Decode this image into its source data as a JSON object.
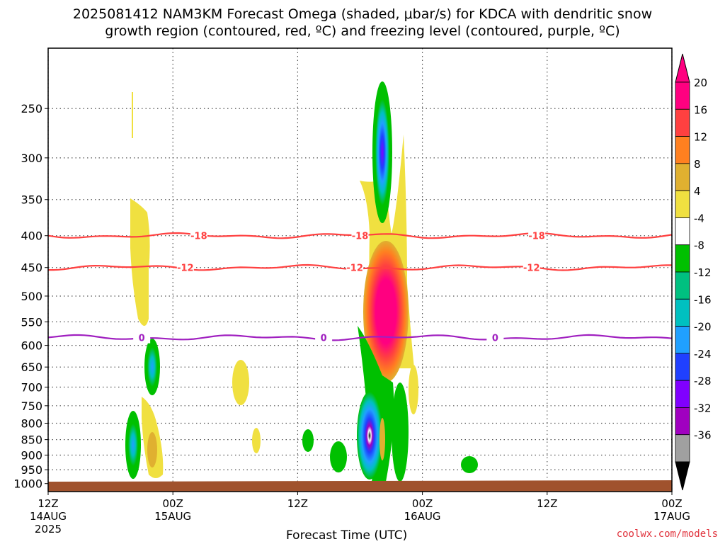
{
  "title_line1": "2025081412 NAM3KM Forecast Omega (shaded, μbar/s) for KDCA with dendritic snow",
  "title_line2": "growth region (contoured, red, ºC) and freezing level (contoured, purple, ºC)",
  "credit": "coolwx.com/models",
  "chart_data": {
    "type": "contour",
    "title": "2025081412 NAM3KM Forecast Omega (shaded, μbar/s) for KDCA with dendritic snow growth region (contoured, red, ºC) and freezing level (contoured, purple, ºC)",
    "xlabel": "Forecast Time (UTC)",
    "ylabel": "",
    "x_range_hours": [
      0,
      60
    ],
    "y_range_hpa": [
      1030,
      200
    ],
    "y_scale": "log-pressure",
    "y_ticks": [
      250,
      300,
      350,
      400,
      450,
      500,
      550,
      600,
      650,
      700,
      750,
      800,
      850,
      900,
      950,
      1000
    ],
    "x_ticks": [
      {
        "hour": 0,
        "line1": "12Z",
        "line2": "14AUG",
        "line3": "2025"
      },
      {
        "hour": 12,
        "line1": "00Z",
        "line2": "15AUG",
        "line3": ""
      },
      {
        "hour": 24,
        "line1": "12Z",
        "line2": "",
        "line3": ""
      },
      {
        "hour": 36,
        "line1": "00Z",
        "line2": "16AUG",
        "line3": ""
      },
      {
        "hour": 48,
        "line1": "12Z",
        "line2": "",
        "line3": ""
      },
      {
        "hour": 60,
        "line1": "00Z",
        "line2": "17AUG",
        "line3": ""
      }
    ],
    "grid": true,
    "colorbar": {
      "placement": "right",
      "levels": [
        {
          "label": "20",
          "color": "#ff0080"
        },
        {
          "label": "16",
          "color": "#ff4040"
        },
        {
          "label": "12",
          "color": "#ff8020"
        },
        {
          "label": "8",
          "color": "#e0b030"
        },
        {
          "label": "4",
          "color": "#f0e040"
        },
        {
          "label": "-4",
          "color": "#ffffff"
        },
        {
          "label": "-8",
          "color": "#00c000"
        },
        {
          "label": "-12",
          "color": "#00c080"
        },
        {
          "label": "-16",
          "color": "#00c0c0"
        },
        {
          "label": "-20",
          "color": "#20a0ff"
        },
        {
          "label": "-24",
          "color": "#2040ff"
        },
        {
          "label": "-28",
          "color": "#8000ff"
        },
        {
          "label": "-32",
          "color": "#a000c0"
        },
        {
          "label": "-36",
          "color": "#a0a0a0"
        }
      ],
      "top_color": "#ff0080",
      "bottom_color": "#000000"
    },
    "isotherms": [
      {
        "label": "-18",
        "color": "#ff4040",
        "pressure_hpa": 400,
        "label_hours": [
          14.5,
          30,
          47
        ]
      },
      {
        "label": "-12",
        "color": "#ff4040",
        "pressure_hpa": 450,
        "label_hours": [
          13.2,
          29.5,
          46.5
        ]
      },
      {
        "label": "0",
        "color": "#a020c0",
        "pressure_hpa": 583,
        "label_hours": [
          9,
          26.5,
          43
        ]
      }
    ],
    "omega_regions": [
      {
        "name": "upper updraft",
        "hour": 31.5,
        "p_top": 230,
        "p_bottom": 400,
        "peak": -28
      },
      {
        "name": "strong subsidence",
        "hour": 31.8,
        "p_top": 430,
        "p_bottom": 600,
        "peak": 20
      },
      {
        "name": "low-level updraft",
        "hour": 30.5,
        "p_top": 570,
        "p_bottom": 970,
        "peak": -36
      },
      {
        "name": "early updraft",
        "hour": 7.5,
        "p_top": 620,
        "p_bottom": 720,
        "peak": -20
      },
      {
        "name": "early low updraft",
        "hour": 5.5,
        "p_top": 780,
        "p_bottom": 980,
        "peak": -20
      }
    ],
    "terrain_color": "#a0522d"
  }
}
